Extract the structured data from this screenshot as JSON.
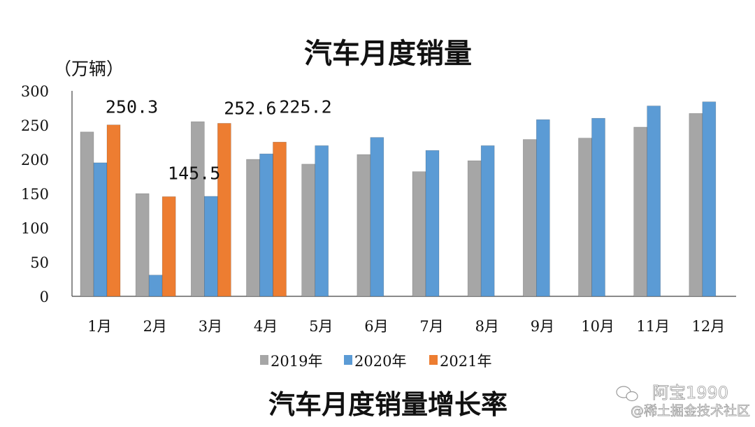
{
  "chart_data": {
    "type": "bar",
    "title": "汽车月度销量",
    "subtitle": "汽车月度销量增长率",
    "ylabel": "（万辆）",
    "ylim": [
      0,
      300
    ],
    "yticks": [
      0,
      50,
      100,
      150,
      200,
      250,
      300
    ],
    "categories": [
      "1月",
      "2月",
      "3月",
      "4月",
      "5月",
      "6月",
      "7月",
      "8月",
      "9月",
      "10月",
      "11月",
      "12月"
    ],
    "series": [
      {
        "name": "2019年",
        "color": "#a6a6a6",
        "values": [
          240,
          150,
          255,
          200,
          193,
          207,
          182,
          198,
          229,
          231,
          247,
          267
        ]
      },
      {
        "name": "2020年",
        "color": "#5b9bd5",
        "values": [
          195,
          31,
          146,
          208,
          220,
          232,
          213,
          220,
          258,
          260,
          278,
          284
        ]
      },
      {
        "name": "2021年",
        "color": "#ed7d31",
        "values": [
          250.3,
          145.5,
          252.6,
          225.2,
          null,
          null,
          null,
          null,
          null,
          null,
          null,
          null
        ]
      }
    ],
    "data_labels": [
      {
        "text": "250.3",
        "category": 0,
        "series": 2
      },
      {
        "text": "145.5",
        "category": 1,
        "series": 2
      },
      {
        "text": "252.6",
        "category": 2,
        "series": 2
      },
      {
        "text": "225.2",
        "category": 3,
        "series": 2
      }
    ],
    "legend_position": "bottom",
    "grid": false
  },
  "watermark": {
    "line1": "阿宝1990",
    "line2": "@稀土掘金技术社区"
  }
}
